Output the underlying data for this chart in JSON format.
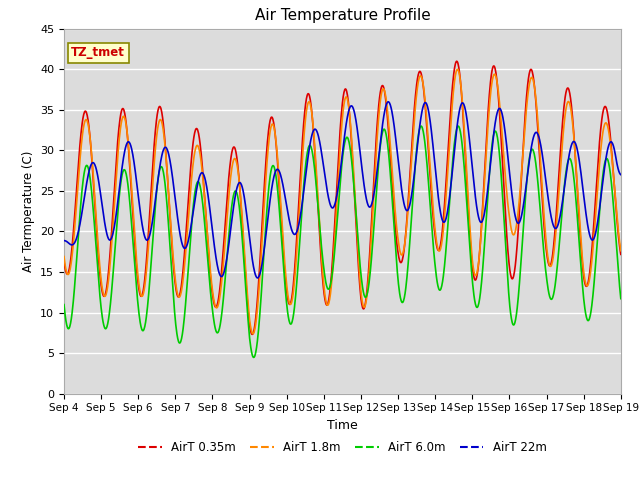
{
  "title": "Air Temperature Profile",
  "xlabel": "Time",
  "ylabel": "Air Termperature (C)",
  "ylim": [
    0,
    45
  ],
  "xtick_labels": [
    "Sep 4",
    "Sep 5",
    "Sep 6",
    "Sep 7",
    "Sep 8",
    "Sep 9",
    "Sep 10",
    "Sep 11",
    "Sep 12",
    "Sep 13",
    "Sep 14",
    "Sep 15",
    "Sep 16",
    "Sep 17",
    "Sep 18",
    "Sep 19"
  ],
  "ytick_values": [
    0,
    5,
    10,
    15,
    20,
    25,
    30,
    35,
    40,
    45
  ],
  "colors": [
    "#dd0000",
    "#ff8800",
    "#00cc00",
    "#0000cc"
  ],
  "labels": [
    "AirT 0.35m",
    "AirT 1.8m",
    "AirT 6.0m",
    "AirT 22m"
  ],
  "lw": 1.2,
  "annotation_text": "TZ_tmet",
  "plot_bg_color": "#dcdcdc",
  "grid_color": "#ffffff",
  "peaks_035": [
    36,
    34,
    36,
    35,
    31,
    30,
    37,
    37,
    38,
    38,
    41,
    41,
    40,
    40,
    36,
    35,
    35
  ],
  "troughs_035": [
    15,
    12,
    12,
    12,
    11,
    7,
    11,
    11,
    10,
    16,
    18,
    14,
    14,
    16,
    13,
    16,
    16
  ],
  "peaks_18": [
    35,
    33,
    35,
    33,
    29,
    29,
    36,
    36,
    37,
    38,
    40,
    40,
    39,
    39,
    34,
    33,
    34
  ],
  "troughs_18": [
    15,
    12,
    12,
    12,
    11,
    7,
    11,
    11,
    10,
    17,
    18,
    14,
    20,
    16,
    13,
    16,
    16
  ],
  "peaks_60": [
    30,
    27,
    28,
    28,
    25,
    25,
    30,
    31,
    32,
    33,
    33,
    33,
    32,
    29,
    29,
    29,
    28
  ],
  "troughs_60": [
    8,
    8,
    8,
    6,
    8,
    4,
    8,
    13,
    12,
    11,
    13,
    11,
    8,
    12,
    9,
    9,
    13
  ],
  "peaks_22m": [
    21,
    32,
    32,
    31,
    27,
    27,
    29,
    35,
    37,
    37,
    37,
    37,
    36,
    32,
    32,
    32,
    32
  ],
  "troughs_22m": [
    18,
    18,
    18,
    18,
    14,
    12,
    18,
    22,
    22,
    22,
    20,
    20,
    20,
    20,
    18,
    18,
    18
  ],
  "phase_shift_22m": 0.15
}
